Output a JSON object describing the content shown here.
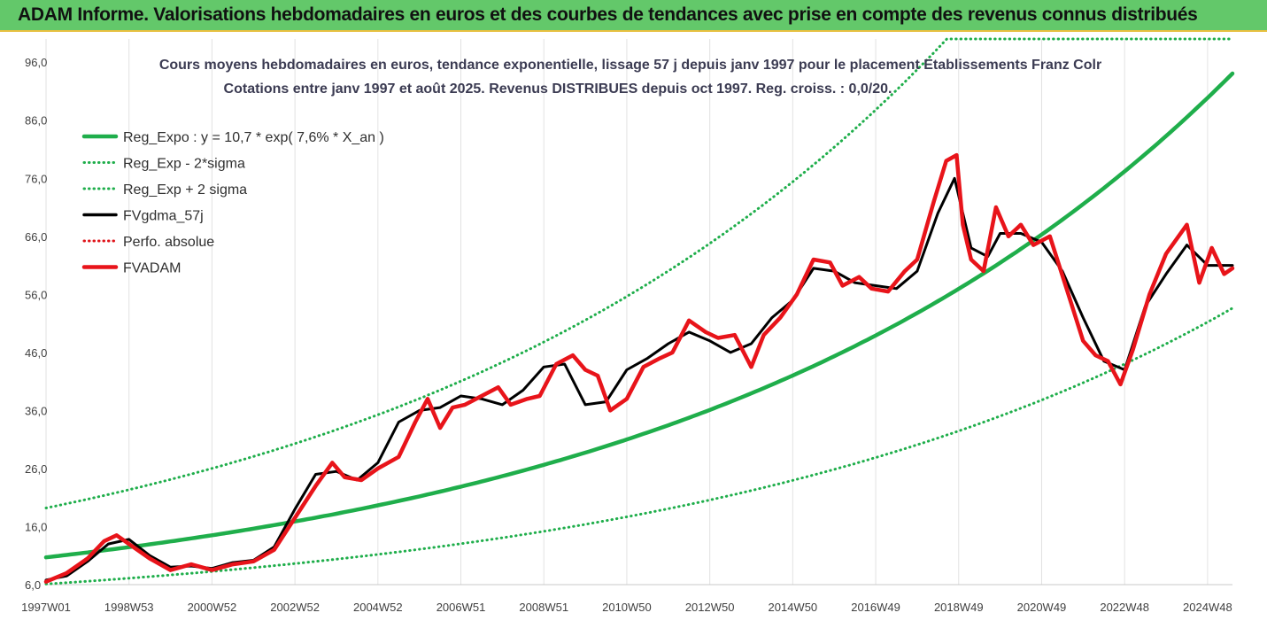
{
  "banner": {
    "title": "ADAM Informe. Valorisations hebdomadaires en euros et des courbes de tendances avec prise en compte des revenus connus distribués"
  },
  "chart_data": {
    "type": "line",
    "title": "Cours moyens hebdomadaires en euros, tendance exponentielle, lissage 57 j depuis janv 1997 pour le placement Etablissements Franz Colr",
    "subtitle": "Cotations entre janv 1997 et août 2025. Revenus DISTRIBUES depuis oct 1997. Reg. croiss. : 0,0/20.",
    "xlabel": "",
    "ylabel": "",
    "ylim": [
      6.0,
      100.0
    ],
    "y_ticks": [
      "96,0",
      "86,0",
      "76,0",
      "66,0",
      "56,0",
      "46,0",
      "36,0",
      "26,0",
      "16,0",
      "6,0"
    ],
    "x_ticks": [
      "1997W01",
      "1998W53",
      "2000W52",
      "2002W52",
      "2004W52",
      "2006W51",
      "2008W51",
      "2010W50",
      "2012W50",
      "2014W50",
      "2016W49",
      "2018W49",
      "2020W49",
      "2022W48",
      "2024W48"
    ],
    "x_range_years": [
      1997.0,
      2025.6
    ],
    "grid": "vertical",
    "legend_position": "top-left",
    "series": [
      {
        "name": "Reg_Expo : y = 10,7 * exp( 7,6% *  X_an )",
        "color": "#1fae4b",
        "style": "solid-thick",
        "kind": "exp",
        "a": 10.7,
        "b": 0.076
      },
      {
        "name": "Reg_Exp - 2*sigma",
        "color": "#1fae4b",
        "style": "dotted",
        "kind": "exp",
        "a": 6.1,
        "b": 0.076
      },
      {
        "name": "Reg_Exp + 2 sigma",
        "color": "#1fae4b",
        "style": "dotted",
        "kind": "exp",
        "a": 19.2,
        "b": 0.076,
        "cap": 100
      },
      {
        "name": "FVgdma_57j",
        "color": "#000000",
        "style": "solid",
        "kind": "data",
        "x": [
          1997.0,
          1997.5,
          1998.0,
          1998.5,
          1999.0,
          1999.5,
          2000.0,
          2000.5,
          2001.0,
          2001.5,
          2002.0,
          2002.5,
          2003.0,
          2003.5,
          2004.0,
          2004.5,
          2005.0,
          2005.5,
          2006.0,
          2006.5,
          2007.0,
          2007.5,
          2008.0,
          2008.5,
          2009.0,
          2009.5,
          2010.0,
          2010.5,
          2011.0,
          2011.5,
          2012.0,
          2012.5,
          2013.0,
          2013.5,
          2014.0,
          2014.5,
          2015.0,
          2015.5,
          2016.0,
          2016.5,
          2017.0,
          2017.5,
          2018.0,
          2018.5,
          2018.9,
          2019.3,
          2019.7,
          2020.0,
          2020.5,
          2021.0,
          2021.5,
          2022.0,
          2022.5,
          2023.0,
          2023.5,
          2024.0,
          2024.5,
          2025.0,
          2025.6
        ],
        "y": [
          6.8,
          7.5,
          10.0,
          13.0,
          13.8,
          11.0,
          9.0,
          9.2,
          8.8,
          9.8,
          10.2,
          12.5,
          19.0,
          25.0,
          25.5,
          24.0,
          27.0,
          34.0,
          36.0,
          36.5,
          38.5,
          38.0,
          37.0,
          39.5,
          43.5,
          44.0,
          37.0,
          37.5,
          43.0,
          45.0,
          47.5,
          49.5,
          48.0,
          46.0,
          47.5,
          52.0,
          55.0,
          60.5,
          60.0,
          58.0,
          57.5,
          57.0,
          60.0,
          70.0,
          76.0,
          64.0,
          62.5,
          66.5,
          66.5,
          65.0,
          60.0,
          52.0,
          44.5,
          43.0,
          54.0,
          59.5,
          64.5,
          61.0,
          61.0
        ]
      },
      {
        "name": "Perfo. absolue",
        "color": "#e0141a",
        "style": "dotted",
        "kind": "hidden"
      },
      {
        "name": "FVADAM",
        "color": "#e8141a",
        "style": "solid-thick",
        "kind": "data",
        "x": [
          1997.0,
          1997.5,
          1998.0,
          1998.4,
          1998.7,
          1999.0,
          1999.5,
          2000.0,
          2000.5,
          2001.0,
          2001.5,
          2002.0,
          2002.5,
          2003.0,
          2003.5,
          2003.9,
          2004.2,
          2004.6,
          2005.0,
          2005.5,
          2005.9,
          2006.2,
          2006.5,
          2006.8,
          2007.1,
          2007.5,
          2007.9,
          2008.2,
          2008.6,
          2008.9,
          2009.3,
          2009.7,
          2010.0,
          2010.3,
          2010.6,
          2011.0,
          2011.4,
          2011.8,
          2012.1,
          2012.5,
          2012.9,
          2013.2,
          2013.6,
          2014.0,
          2014.3,
          2014.7,
          2015.1,
          2015.5,
          2015.9,
          2016.2,
          2016.6,
          2016.9,
          2017.3,
          2017.7,
          2018.0,
          2018.4,
          2018.7,
          2018.95,
          2019.1,
          2019.3,
          2019.6,
          2019.9,
          2020.2,
          2020.5,
          2020.8,
          2021.2,
          2021.6,
          2022.0,
          2022.3,
          2022.6,
          2022.9,
          2023.2,
          2023.6,
          2024.0,
          2024.3,
          2024.5,
          2024.8,
          2025.1,
          2025.4,
          2025.6
        ],
        "y": [
          6.5,
          8.0,
          10.5,
          13.5,
          14.5,
          13.0,
          10.5,
          8.5,
          9.5,
          8.5,
          9.5,
          10.0,
          12.0,
          17.5,
          23.0,
          27.0,
          24.5,
          24.0,
          26.0,
          28.0,
          34.0,
          38.0,
          33.0,
          36.5,
          37.0,
          38.5,
          40.0,
          37.0,
          38.0,
          38.5,
          44.0,
          45.5,
          43.0,
          42.0,
          36.0,
          38.0,
          43.5,
          45.0,
          46.0,
          51.5,
          49.5,
          48.5,
          49.0,
          43.5,
          49.0,
          52.0,
          56.0,
          62.0,
          61.5,
          57.5,
          59.0,
          57.0,
          56.5,
          60.0,
          62.0,
          72.0,
          79.0,
          80.0,
          68.0,
          62.0,
          60.0,
          71.0,
          66.0,
          68.0,
          64.5,
          66.0,
          57.0,
          48.0,
          45.5,
          44.5,
          40.5,
          46.5,
          56.0,
          63.0,
          66.0,
          68.0,
          58.0,
          64.0,
          59.5,
          60.5
        ]
      }
    ]
  }
}
